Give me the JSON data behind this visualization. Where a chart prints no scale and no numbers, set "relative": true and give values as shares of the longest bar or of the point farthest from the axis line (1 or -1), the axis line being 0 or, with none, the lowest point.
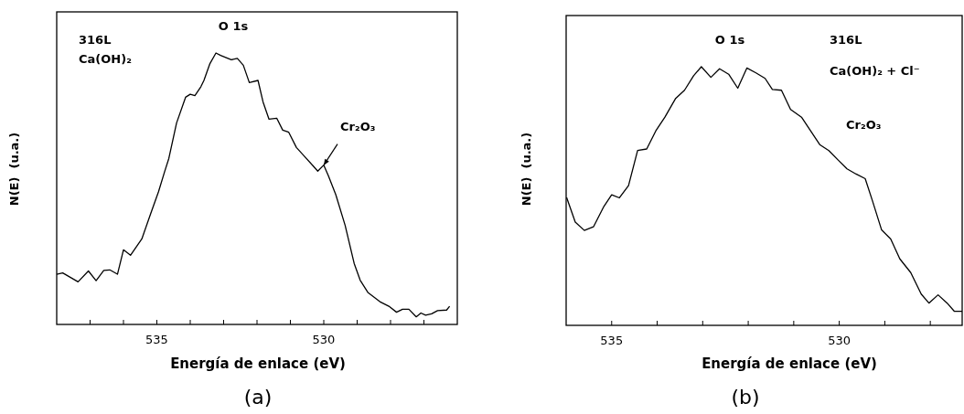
{
  "chart_data": [
    {
      "type": "line",
      "title": "O 1s",
      "xlabel": "Energía de enlace (eV)",
      "ylabel": "N(E)  (u.a.)",
      "relative": true,
      "xlim": [
        538,
        526
      ],
      "xticks": [
        {
          "value": 537,
          "label": null
        },
        {
          "value": 536,
          "label": null
        },
        {
          "value": 535,
          "label": "535"
        },
        {
          "value": 534,
          "label": null
        },
        {
          "value": 533,
          "label": null
        },
        {
          "value": 532,
          "label": null
        },
        {
          "value": 531,
          "label": null
        },
        {
          "value": 530,
          "label": "530"
        },
        {
          "value": 529,
          "label": null
        },
        {
          "value": 528,
          "label": null
        },
        {
          "value": 527,
          "label": null
        }
      ],
      "annotations": [
        "316L",
        "Ca(OH)₂",
        {
          "text": "Cr₂O₃",
          "x": 530.0,
          "y": 0.587
        },
        "(a)"
      ],
      "series": [
        {
          "color": "#000000",
          "x": [
            538.0,
            537.82,
            537.36,
            537.05,
            536.82,
            536.59,
            536.41,
            536.18,
            536.0,
            535.79,
            535.45,
            535.18,
            534.95,
            534.77,
            534.64,
            534.41,
            534.14,
            534.0,
            533.86,
            533.68,
            533.59,
            533.41,
            533.23,
            533.09,
            532.77,
            532.59,
            532.41,
            532.23,
            531.97,
            531.82,
            531.64,
            531.41,
            531.23,
            531.05,
            530.82,
            530.59,
            530.32,
            530.18,
            530.0,
            529.86,
            529.64,
            529.36,
            529.09,
            528.91,
            528.68,
            528.32,
            528.05,
            527.82,
            527.64,
            527.45,
            527.23,
            527.09,
            526.95,
            526.77,
            526.59,
            526.32,
            526.23
          ],
          "values": [
            0.185,
            0.19,
            0.157,
            0.197,
            0.161,
            0.199,
            0.201,
            0.185,
            0.275,
            0.255,
            0.315,
            0.41,
            0.489,
            0.562,
            0.612,
            0.742,
            0.837,
            0.848,
            0.843,
            0.876,
            0.899,
            0.961,
            1.0,
            0.991,
            0.975,
            0.98,
            0.955,
            0.891,
            0.899,
            0.82,
            0.756,
            0.76,
            0.716,
            0.708,
            0.652,
            0.621,
            0.584,
            0.565,
            0.587,
            0.547,
            0.478,
            0.365,
            0.225,
            0.163,
            0.118,
            0.084,
            0.067,
            0.045,
            0.056,
            0.056,
            0.028,
            0.042,
            0.034,
            0.039,
            0.051,
            0.053,
            0.067
          ]
        }
      ]
    },
    {
      "type": "line",
      "title": "O 1s",
      "xlabel": "Energía de enlace (eV)",
      "ylabel": "N(E)  (u.a.)",
      "relative": true,
      "xlim": [
        536,
        527.3
      ],
      "xticks": [
        {
          "value": 535,
          "label": "535"
        },
        {
          "value": 534,
          "label": null
        },
        {
          "value": 533,
          "label": null
        },
        {
          "value": 532,
          "label": null
        },
        {
          "value": 531,
          "label": null
        },
        {
          "value": 530,
          "label": "530"
        },
        {
          "value": 529,
          "label": null
        },
        {
          "value": 528,
          "label": null
        }
      ],
      "annotations": [
        "316L",
        "Ca(OH)₂ + Cl⁻",
        "Cr₂O₃",
        "(b)"
      ],
      "series": [
        {
          "color": "#000000",
          "x": [
            535.99,
            535.8,
            535.6,
            535.4,
            535.17,
            535.0,
            534.83,
            534.63,
            534.43,
            534.23,
            534.03,
            533.83,
            533.6,
            533.4,
            533.2,
            533.03,
            532.82,
            532.63,
            532.43,
            532.23,
            532.03,
            531.83,
            531.63,
            531.47,
            531.27,
            531.07,
            530.83,
            530.63,
            530.43,
            530.23,
            530.03,
            529.83,
            529.63,
            529.43,
            529.27,
            529.07,
            528.87,
            528.67,
            528.43,
            528.2,
            528.03,
            527.83,
            527.63,
            527.47,
            527.3
          ],
          "values": [
            0.495,
            0.399,
            0.367,
            0.381,
            0.46,
            0.505,
            0.493,
            0.54,
            0.676,
            0.682,
            0.752,
            0.805,
            0.876,
            0.909,
            0.965,
            1.0,
            0.959,
            0.992,
            0.971,
            0.917,
            0.995,
            0.976,
            0.955,
            0.912,
            0.909,
            0.835,
            0.805,
            0.752,
            0.699,
            0.676,
            0.64,
            0.605,
            0.585,
            0.567,
            0.481,
            0.369,
            0.334,
            0.257,
            0.204,
            0.121,
            0.086,
            0.118,
            0.086,
            0.054,
            0.054
          ]
        }
      ]
    }
  ]
}
